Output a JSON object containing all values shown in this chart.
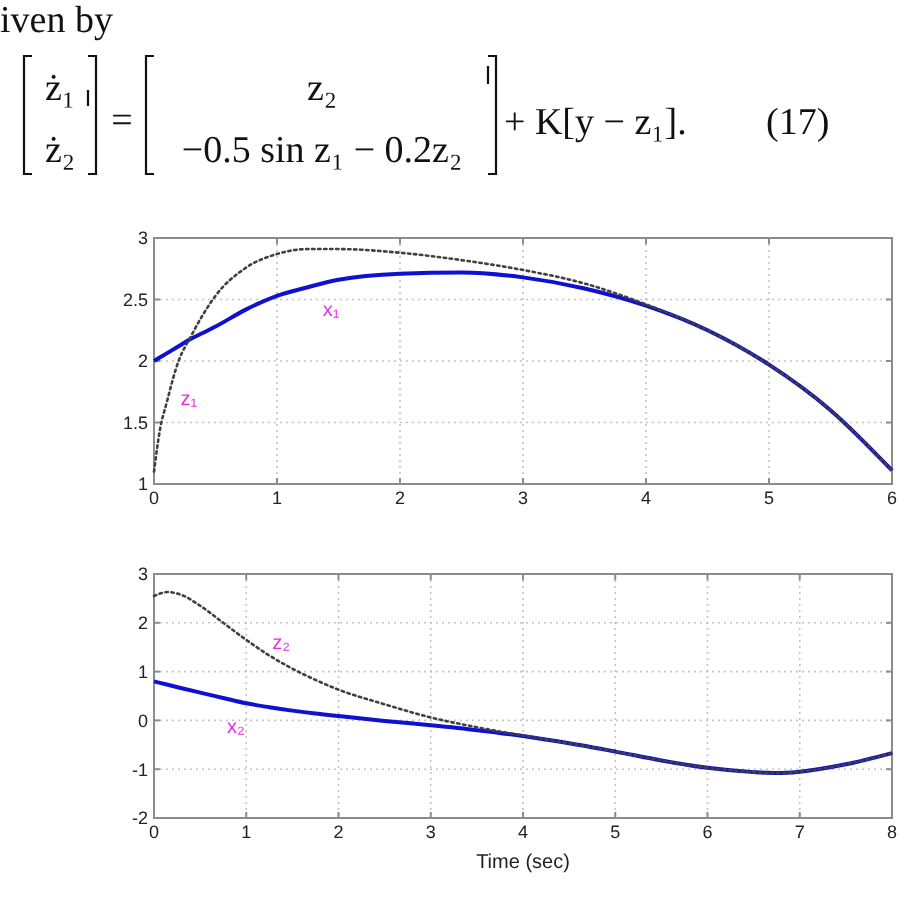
{
  "chart_data": [
    {
      "type": "other",
      "annotations": [
        "iven by",
        "ż₁",
        "ż₂",
        "=",
        "z₂",
        "−0.5 sin z₁ − 0.2z₂",
        "+ K[y − z₁].",
        "(17)"
      ]
    },
    {
      "type": "line",
      "x": [
        0,
        0.05,
        0.1,
        0.2,
        0.3,
        0.4,
        0.5,
        0.75,
        1,
        1.25,
        1.5,
        2,
        2.5,
        3,
        3.5,
        4,
        4.5,
        5,
        5.5,
        6
      ],
      "series": [
        {
          "name": "x₁",
          "color": "#1010d0",
          "line_style": "solid",
          "values": [
            2.0,
            2.03,
            2.06,
            2.12,
            2.18,
            2.23,
            2.28,
            2.42,
            2.53,
            2.6,
            2.66,
            2.71,
            2.72,
            2.68,
            2.59,
            2.45,
            2.25,
            1.97,
            1.6,
            1.11
          ]
        },
        {
          "name": "z₁",
          "color": "#404040",
          "line_style": "dotted",
          "values": [
            1.1,
            1.45,
            1.65,
            2.0,
            2.2,
            2.38,
            2.53,
            2.76,
            2.87,
            2.91,
            2.91,
            2.88,
            2.82,
            2.74,
            2.63,
            2.46,
            2.25,
            1.97,
            1.6,
            1.11
          ]
        }
      ],
      "xlim": [
        0,
        6
      ],
      "ylim": [
        1,
        3
      ],
      "xticks": [
        0,
        1,
        2,
        3,
        4,
        5,
        6
      ],
      "yticks": [
        1,
        1.5,
        2,
        2.5,
        3
      ],
      "grid": true
    },
    {
      "type": "line",
      "xlabel": "Time (sec)",
      "x": [
        0,
        0.15,
        0.3,
        0.5,
        0.75,
        1,
        1.25,
        1.5,
        1.75,
        2,
        2.5,
        3,
        3.5,
        4,
        4.5,
        5,
        5.5,
        6,
        6.5,
        6.75,
        7,
        7.5,
        8
      ],
      "series": [
        {
          "name": "x₂",
          "color": "#1010d0",
          "line_style": "solid",
          "values": [
            0.8,
            0.73,
            0.66,
            0.57,
            0.46,
            0.35,
            0.27,
            0.2,
            0.14,
            0.09,
            -0.01,
            -0.1,
            -0.2,
            -0.32,
            -0.47,
            -0.64,
            -0.82,
            -0.97,
            -1.06,
            -1.08,
            -1.05,
            -0.9,
            -0.67
          ]
        },
        {
          "name": "z₂",
          "color": "#404040",
          "line_style": "dotted",
          "values": [
            2.55,
            2.63,
            2.57,
            2.35,
            2.0,
            1.65,
            1.33,
            1.06,
            0.83,
            0.63,
            0.33,
            0.06,
            -0.14,
            -0.31,
            -0.47,
            -0.64,
            -0.82,
            -0.97,
            -1.06,
            -1.08,
            -1.05,
            -0.9,
            -0.67
          ]
        }
      ],
      "xlim": [
        0,
        8
      ],
      "ylim": [
        -2,
        3
      ],
      "xticks": [
        0,
        1,
        2,
        3,
        4,
        5,
        6,
        7,
        8
      ],
      "yticks": [
        -2,
        -1,
        0,
        1,
        2,
        3
      ],
      "grid": true
    }
  ]
}
